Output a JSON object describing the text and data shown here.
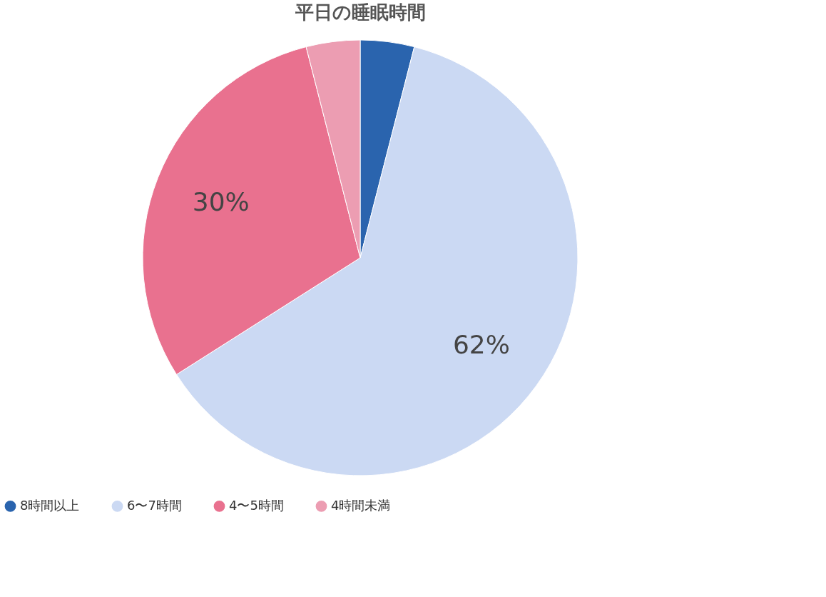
{
  "chart_data": {
    "type": "pie",
    "title": "平日の睡眠時間",
    "categories": [
      "8時間以上",
      "6〜7時間",
      "4〜5時間",
      "4時間未満"
    ],
    "values": [
      4,
      62,
      30,
      4
    ],
    "colors": [
      "#2a64ae",
      "#cbd9f3",
      "#e9718f",
      "#ec9db2"
    ],
    "value_labels": [
      null,
      "62%",
      "30%",
      null
    ],
    "legend": "bottom"
  }
}
